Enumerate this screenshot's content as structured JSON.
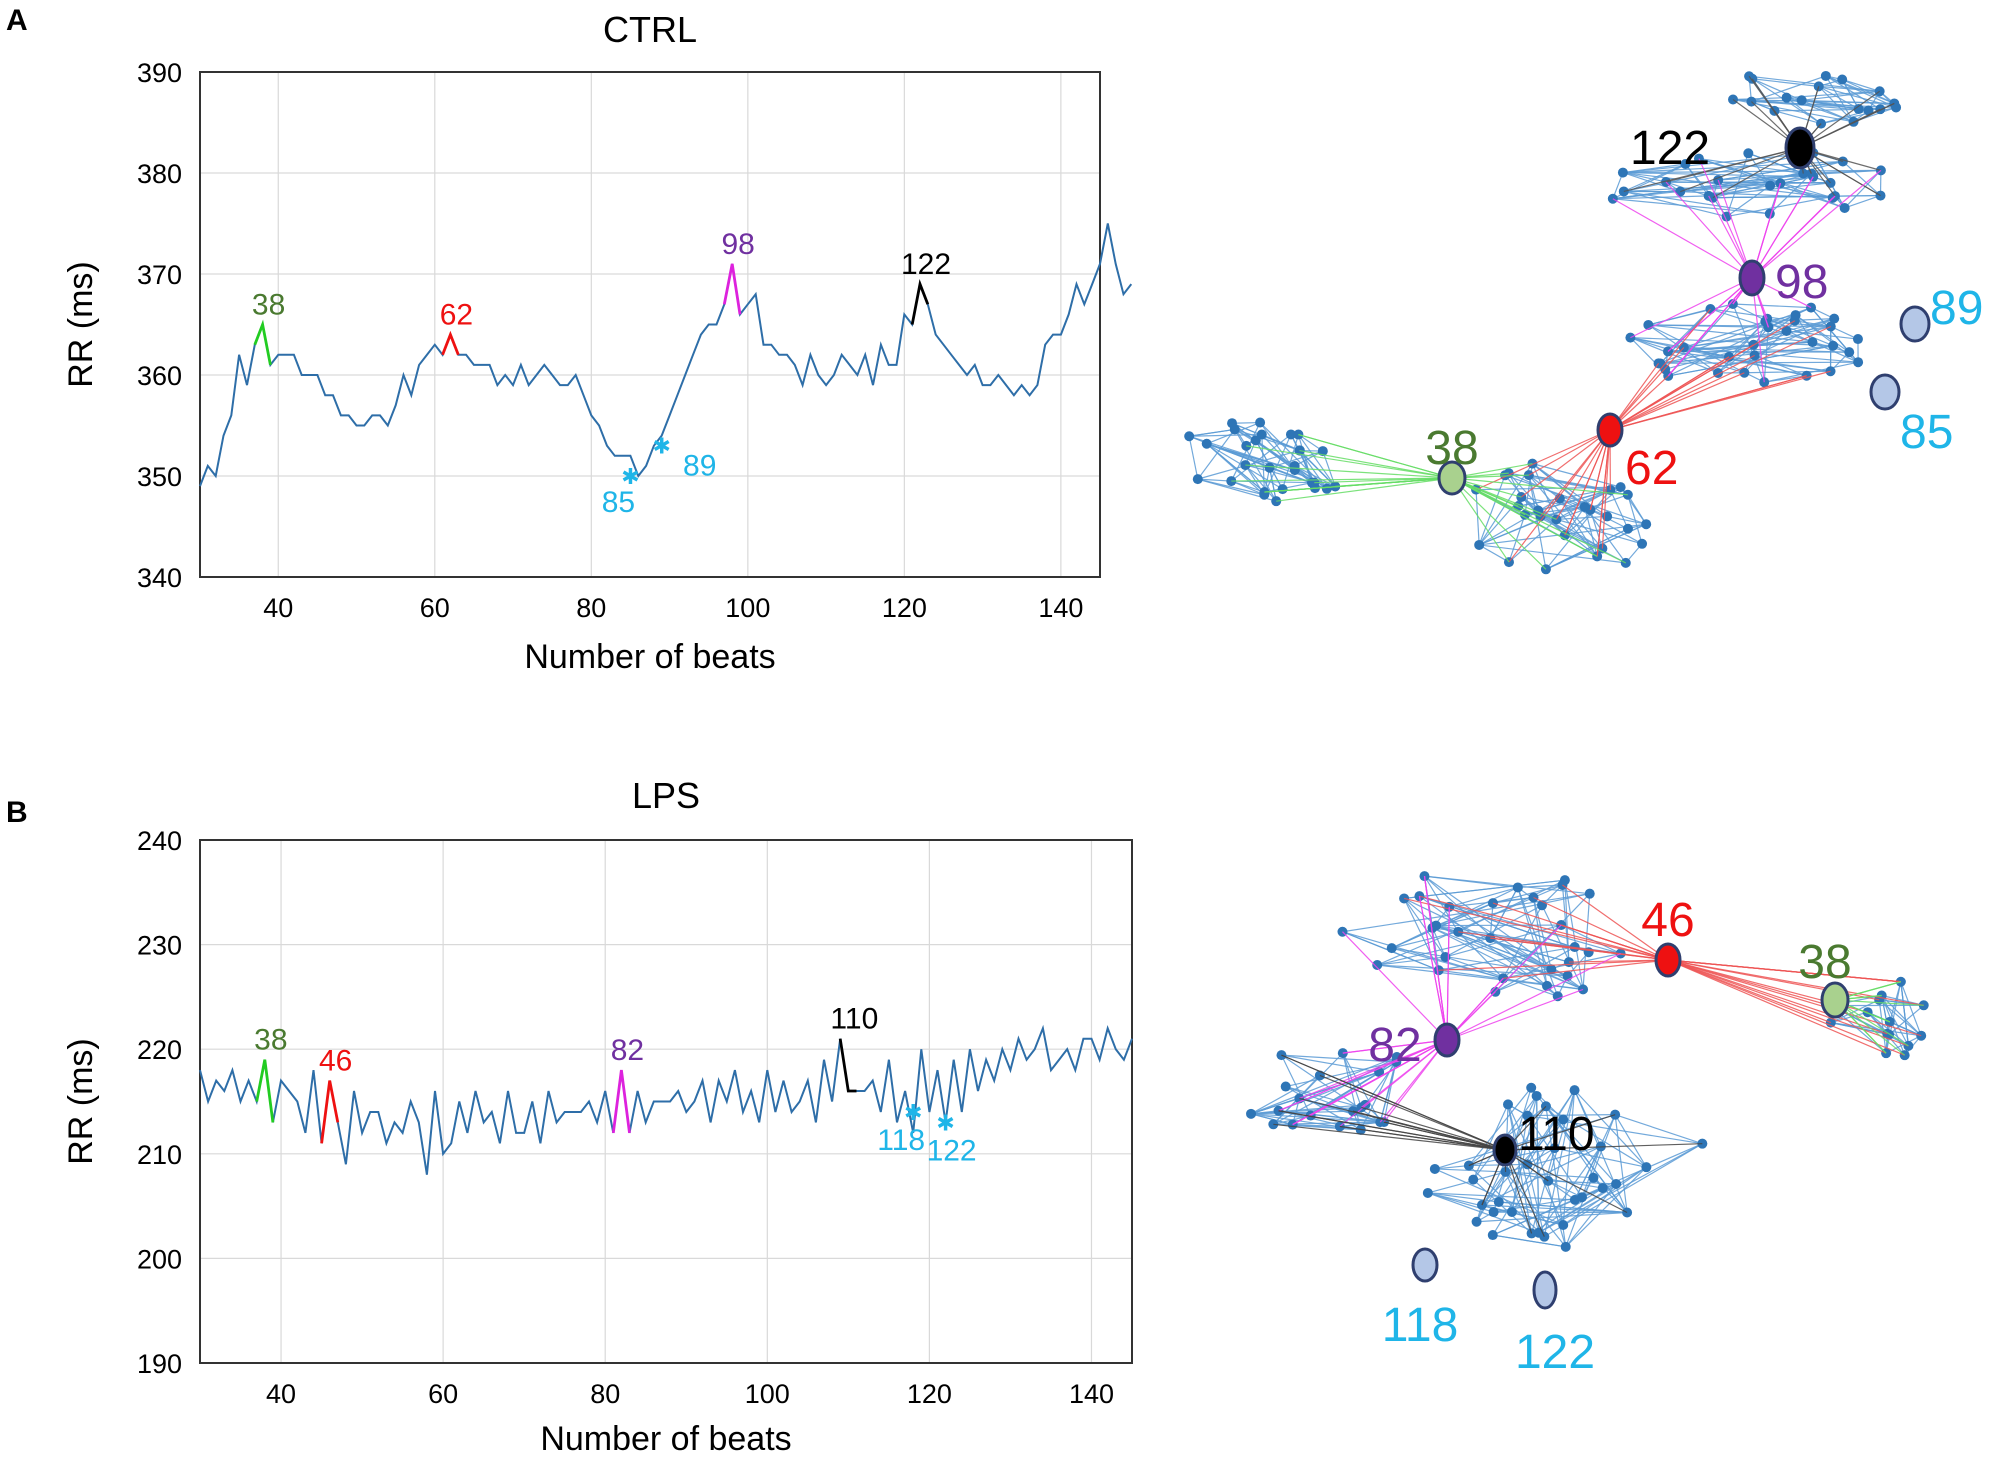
{
  "figure": {
    "panel_labels": [
      "A",
      "B"
    ]
  },
  "chart_data": [
    {
      "type": "line",
      "panel": "A",
      "title": "CTRL",
      "xlabel": "Number of beats",
      "ylabel": "RR (ms)",
      "xlim": [
        30,
        145
      ],
      "ylim": [
        340,
        390
      ],
      "xticks": [
        40,
        60,
        80,
        100,
        120,
        140
      ],
      "yticks": [
        340,
        350,
        360,
        370,
        380,
        390
      ],
      "grid": true,
      "series_color": "#2e6ea8",
      "x_start": 30,
      "values": [
        349,
        351,
        350,
        354,
        356,
        362,
        359,
        363,
        365,
        361,
        362,
        362,
        362,
        360,
        360,
        360,
        358,
        358,
        356,
        356,
        355,
        355,
        356,
        356,
        355,
        357,
        360,
        358,
        361,
        362,
        363,
        362,
        364,
        362,
        362,
        361,
        361,
        361,
        359,
        360,
        359,
        361,
        359,
        360,
        361,
        360,
        359,
        359,
        360,
        358,
        356,
        355,
        353,
        352,
        352,
        352,
        350,
        351,
        353,
        354,
        356,
        358,
        360,
        362,
        364,
        365,
        365,
        367,
        371,
        366,
        367,
        368,
        363,
        363,
        362,
        362,
        361,
        359,
        362,
        360,
        359,
        360,
        362,
        361,
        360,
        362,
        359,
        363,
        361,
        361,
        366,
        365,
        369,
        367,
        364,
        363,
        362,
        361,
        360,
        361,
        359,
        359,
        360,
        359,
        358,
        359,
        358,
        359,
        363,
        364,
        364,
        366,
        369,
        367,
        369,
        371,
        375,
        371,
        368,
        369
      ],
      "highlights": [
        {
          "label": "38",
          "x": 38,
          "color": "#22cc22",
          "label_color": "#4a7a30"
        },
        {
          "label": "62",
          "x": 62,
          "color": "#ee1111",
          "label_color": "#ee1111"
        },
        {
          "label": "98",
          "x": 98,
          "color": "#dd22dd",
          "label_color": "#7030a0"
        },
        {
          "label": "122",
          "x": 122,
          "color": "#000000",
          "label_color": "#000000"
        }
      ],
      "markers": [
        {
          "label": "85",
          "x": 85,
          "y": 350,
          "color": "#1fb5e8"
        },
        {
          "label": "89",
          "x": 89,
          "y": 353,
          "color": "#1fb5e8"
        }
      ]
    },
    {
      "type": "line",
      "panel": "B",
      "title": "LPS",
      "xlabel": "Number of beats",
      "ylabel": "RR (ms)",
      "xlim": [
        30,
        145
      ],
      "ylim": [
        190,
        240
      ],
      "xticks": [
        40,
        60,
        80,
        100,
        120,
        140
      ],
      "yticks": [
        190,
        200,
        210,
        220,
        230,
        240
      ],
      "grid": true,
      "series_color": "#2e6ea8",
      "x_start": 30,
      "values": [
        218,
        215,
        217,
        216,
        218,
        215,
        217,
        215,
        219,
        213,
        217,
        216,
        215,
        212,
        218,
        211,
        217,
        213,
        209,
        216,
        212,
        214,
        214,
        211,
        213,
        212,
        215,
        213,
        208,
        216,
        210,
        211,
        215,
        212,
        216,
        213,
        214,
        211,
        216,
        212,
        212,
        215,
        211,
        216,
        213,
        214,
        214,
        214,
        215,
        213,
        216,
        212,
        218,
        212,
        216,
        213,
        215,
        215,
        215,
        216,
        214,
        215,
        217,
        213,
        217,
        215,
        218,
        214,
        216,
        213,
        218,
        214,
        217,
        214,
        215,
        217,
        213,
        219,
        215,
        221,
        216,
        216,
        216,
        217,
        214,
        219,
        213,
        216,
        212,
        220,
        214,
        218,
        213,
        219,
        214,
        220,
        216,
        219,
        217,
        220,
        218,
        221,
        219,
        220,
        222,
        218,
        219,
        220,
        218,
        221,
        221,
        219,
        222,
        220,
        219,
        221
      ],
      "highlights": [
        {
          "label": "38",
          "x": 38,
          "color": "#22cc22",
          "label_color": "#4a7a30"
        },
        {
          "label": "46",
          "x": 46,
          "color": "#ee1111",
          "label_color": "#ee1111"
        },
        {
          "label": "82",
          "x": 82,
          "color": "#dd22dd",
          "label_color": "#7030a0"
        },
        {
          "label": "110",
          "x": 110,
          "color": "#000000",
          "label_color": "#000000"
        }
      ],
      "markers": [
        {
          "label": "118",
          "x": 118,
          "y": 214,
          "color": "#1fb5e8"
        },
        {
          "label": "122",
          "x": 122,
          "y": 213,
          "color": "#1fb5e8"
        }
      ]
    }
  ],
  "networks": [
    {
      "panel": "A",
      "labeled_nodes": [
        {
          "label": "122",
          "color": "#000000",
          "label_color": "#000000"
        },
        {
          "label": "98",
          "color": "#7030a0",
          "label_color": "#7030a0"
        },
        {
          "label": "89",
          "color": "#b4c7e7",
          "label_color": "#1fb5e8"
        },
        {
          "label": "85",
          "color": "#b4c7e7",
          "label_color": "#1fb5e8"
        },
        {
          "label": "62",
          "color": "#ee1111",
          "label_color": "#ee1111"
        },
        {
          "label": "38",
          "color": "#a9d18e",
          "label_color": "#4a7a30"
        }
      ]
    },
    {
      "panel": "B",
      "labeled_nodes": [
        {
          "label": "46",
          "color": "#ee1111",
          "label_color": "#ee1111"
        },
        {
          "label": "38",
          "color": "#a9d18e",
          "label_color": "#4a7a30"
        },
        {
          "label": "82",
          "color": "#7030a0",
          "label_color": "#7030a0"
        },
        {
          "label": "110",
          "color": "#000000",
          "label_color": "#000000"
        },
        {
          "label": "118",
          "color": "#b4c7e7",
          "label_color": "#1fb5e8"
        },
        {
          "label": "122",
          "color": "#b4c7e7",
          "label_color": "#1fb5e8"
        }
      ]
    }
  ]
}
